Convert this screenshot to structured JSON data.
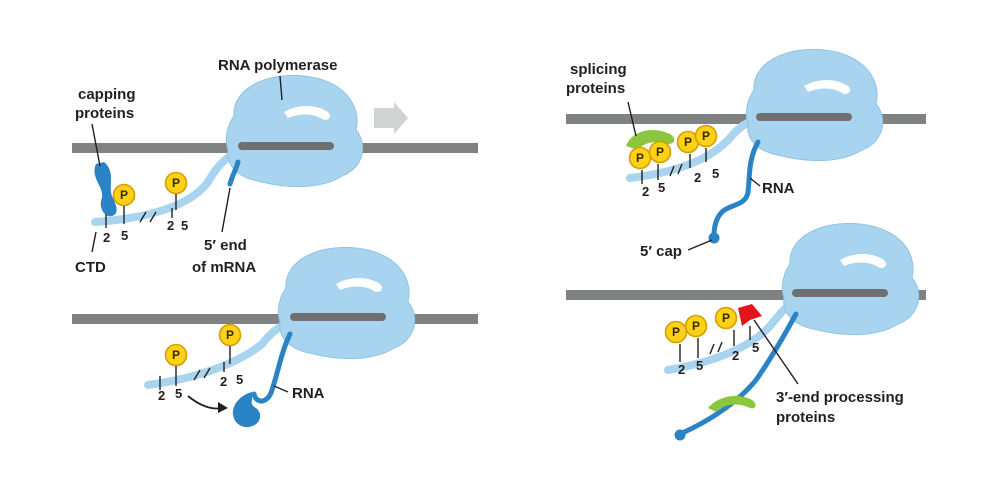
{
  "labels": {
    "rna_polymerase": "RNA polymerase",
    "capping_line1": "capping",
    "capping_line2": "proteins",
    "ctd": "CTD",
    "five_end_line1": "5′ end",
    "five_end_line2": "of mRNA",
    "splicing_line1": "splicing",
    "splicing_line2": "proteins",
    "rna": "RNA",
    "five_cap": "5′ cap",
    "three_end_line1": "3′-end processing",
    "three_end_line2": "proteins",
    "phosphate": "P",
    "pos2": "2",
    "pos5": "5"
  },
  "colors": {
    "dna": "#808282",
    "polymerase": "#a9d4ef",
    "polymerase_edge": "#7fb7dc",
    "ctd_tail": "#a9d4ef",
    "rna": "#2a83c4",
    "capping_protein": "#2a83c4",
    "phosphate_fill": "#fcd116",
    "phosphate_edge": "#d69e00",
    "splicing_protein": "#8cc63f",
    "processing_protein": "#e3151a",
    "arrow": "#cfd3d2"
  }
}
